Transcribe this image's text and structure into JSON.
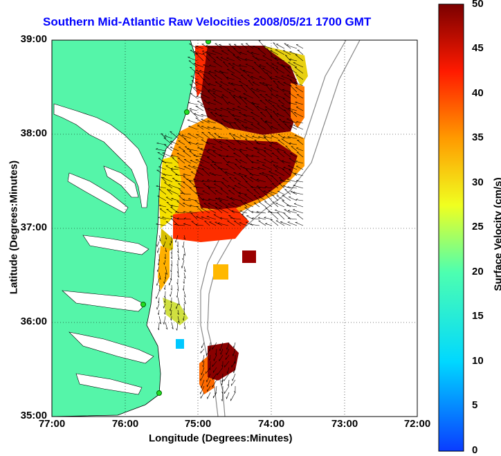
{
  "map": {
    "title": "Southern Mid-Atlantic Raw Velocities 2008/05/21 1700 GMT",
    "xlabel": "Longitude (Degrees:Minutes)",
    "ylabel": "Latitude (Degrees:Minutes)",
    "xticks": [
      "77:00",
      "76:00",
      "75:00",
      "74:00",
      "73:00",
      "72:00"
    ],
    "yticks": [
      "39:00",
      "38:00",
      "37:00",
      "36:00",
      "35:00"
    ],
    "colors": {
      "land": "#55f5a9",
      "title": "#0000ff",
      "arrow": "#000000"
    }
  },
  "colorbar": {
    "label": "Surface Velocity (cm/s)",
    "ticks": [
      "50",
      "45",
      "40",
      "35",
      "30",
      "25",
      "20",
      "15",
      "10",
      "5",
      "0"
    ],
    "range": [
      0,
      50
    ]
  }
}
